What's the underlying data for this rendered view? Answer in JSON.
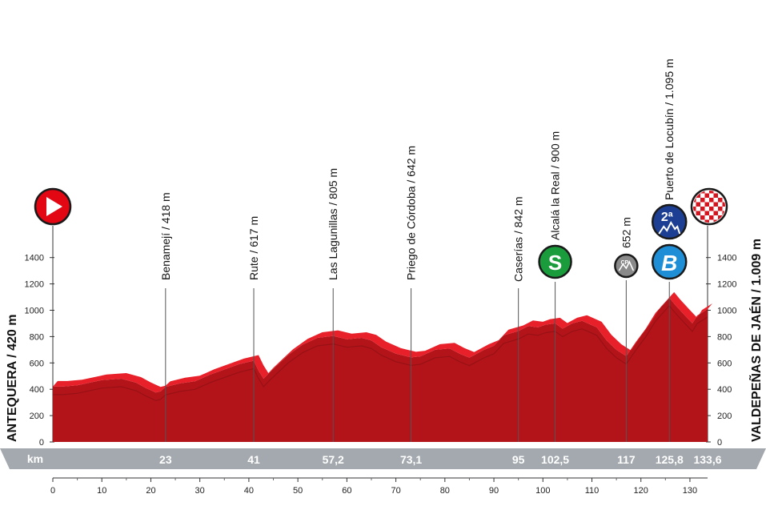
{
  "chart_data": {
    "type": "area",
    "y_unit": "m",
    "x_unit": "km",
    "xlim": [
      0,
      133.6
    ],
    "ylim": [
      0,
      1500
    ],
    "y_ticks": [
      0,
      200,
      400,
      600,
      800,
      1000,
      1200,
      1400
    ],
    "x_ticks": [
      0,
      10,
      20,
      30,
      40,
      50,
      60,
      70,
      80,
      90,
      100,
      110,
      120,
      130
    ],
    "km_band_label": "km",
    "km_markers": [
      {
        "km": 23,
        "label": "23"
      },
      {
        "km": 41,
        "label": "41"
      },
      {
        "km": 57.2,
        "label": "57,2"
      },
      {
        "km": 73.1,
        "label": "73,1"
      },
      {
        "km": 95,
        "label": "95"
      },
      {
        "km": 102.5,
        "label": "102,5"
      },
      {
        "km": 117,
        "label": "117"
      },
      {
        "km": 125.8,
        "label": "125,8"
      },
      {
        "km": 133.6,
        "label": "133,6"
      }
    ],
    "start_label": "ANTEQUERA / 420 m",
    "finish_label": "VALDEPEÑAS DE JAÉN / 1.009 m",
    "points": [
      {
        "km": 23,
        "label": "Benamejí / 418 m"
      },
      {
        "km": 41,
        "label": "Rute / 617 m"
      },
      {
        "km": 57.2,
        "label": "Las Lagunillas / 805 m"
      },
      {
        "km": 73.1,
        "label": "Priego de Córdoba / 642 m"
      },
      {
        "km": 95,
        "label": "Caserías / 842 m"
      },
      {
        "km": 102.5,
        "label": "Alcalá la Real / 900 m",
        "icon": "sprint-icon",
        "icon_text": "S"
      },
      {
        "km": 117,
        "label": "652 m",
        "icon": "cp-icon",
        "icon_text": "CP"
      },
      {
        "km": 125.8,
        "label": "Puerto de Locubín / 1.095 m",
        "icon": "climb-cat2-icon",
        "icon_text": "2ª",
        "icon2": "bonus-icon",
        "icon2_text": "B"
      }
    ],
    "profile": [
      [
        0,
        420
      ],
      [
        2,
        420
      ],
      [
        5,
        430
      ],
      [
        10,
        470
      ],
      [
        14,
        480
      ],
      [
        17,
        450
      ],
      [
        19,
        410
      ],
      [
        21,
        375
      ],
      [
        22,
        385
      ],
      [
        23,
        418
      ],
      [
        26,
        445
      ],
      [
        29,
        460
      ],
      [
        32,
        510
      ],
      [
        35,
        550
      ],
      [
        38,
        590
      ],
      [
        41,
        617
      ],
      [
        42,
        540
      ],
      [
        43,
        480
      ],
      [
        44,
        520
      ],
      [
        46,
        590
      ],
      [
        48,
        660
      ],
      [
        51,
        740
      ],
      [
        54,
        790
      ],
      [
        57.2,
        805
      ],
      [
        60,
        780
      ],
      [
        63,
        790
      ],
      [
        65,
        770
      ],
      [
        67,
        720
      ],
      [
        70,
        670
      ],
      [
        73.1,
        642
      ],
      [
        75,
        650
      ],
      [
        78,
        700
      ],
      [
        81,
        710
      ],
      [
        83,
        670
      ],
      [
        85,
        640
      ],
      [
        88,
        700
      ],
      [
        90,
        730
      ],
      [
        92,
        810
      ],
      [
        95,
        842
      ],
      [
        97,
        880
      ],
      [
        99,
        870
      ],
      [
        100.5,
        890
      ],
      [
        102.5,
        900
      ],
      [
        104,
        860
      ],
      [
        106,
        900
      ],
      [
        108,
        920
      ],
      [
        111,
        870
      ],
      [
        113,
        770
      ],
      [
        115,
        700
      ],
      [
        117,
        652
      ],
      [
        119,
        760
      ],
      [
        121,
        860
      ],
      [
        123,
        980
      ],
      [
        125.8,
        1095
      ],
      [
        127,
        1040
      ],
      [
        129,
        960
      ],
      [
        130.5,
        900
      ],
      [
        131.5,
        960
      ],
      [
        133.6,
        1009
      ]
    ],
    "colors": {
      "profile": "#b3141a",
      "profile_top": "#e8202a",
      "start_flag": "#e30613",
      "sprint": "#1a9b3c",
      "climb": "#1c3f94",
      "bonus": "#1e8fd6",
      "cp": "#8a8a8a",
      "km_band": "#a3a9ae"
    }
  }
}
